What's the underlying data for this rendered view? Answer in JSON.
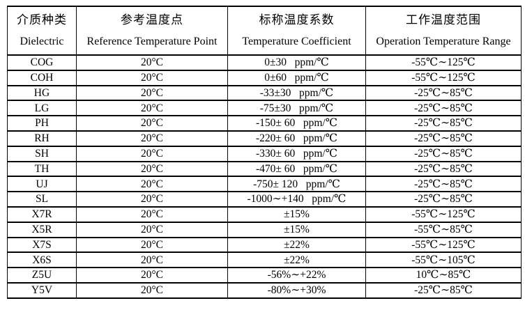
{
  "table": {
    "columns": [
      {
        "zh": "介质种类",
        "en": "Dielectric"
      },
      {
        "zh": "参考温度点",
        "en": "Reference Temperature Point"
      },
      {
        "zh": "标称温度系数",
        "en": "Temperature Coefficient"
      },
      {
        "zh": "工作温度范围",
        "en": "Operation Temperature Range"
      }
    ],
    "rows": [
      {
        "dielectric": "COG",
        "reference": "20°C",
        "coefficient": "0±30   ppm/℃",
        "range": "-55℃∼125℃"
      },
      {
        "dielectric": "COH",
        "reference": "20°C",
        "coefficient": "0±60   ppm/℃",
        "range": "-55℃∼125℃"
      },
      {
        "dielectric": "HG",
        "reference": "20°C",
        "coefficient": "-33±30   ppm/℃",
        "range": "-25℃∼85℃"
      },
      {
        "dielectric": "LG",
        "reference": "20°C",
        "coefficient": "-75±30   ppm/℃",
        "range": "-25℃∼85℃"
      },
      {
        "dielectric": "PH",
        "reference": "20°C",
        "coefficient": "-150± 60   ppm/℃",
        "range": "-25℃∼85℃"
      },
      {
        "dielectric": "RH",
        "reference": "20°C",
        "coefficient": "-220± 60   ppm/℃",
        "range": "-25℃∼85℃"
      },
      {
        "dielectric": "SH",
        "reference": "20°C",
        "coefficient": "-330± 60   ppm/℃",
        "range": "-25℃∼85℃"
      },
      {
        "dielectric": "TH",
        "reference": "20°C",
        "coefficient": "-470± 60   ppm/℃",
        "range": "-25℃∼85℃"
      },
      {
        "dielectric": "UJ",
        "reference": "20°C",
        "coefficient": "-750± 120   ppm/℃",
        "range": "-25℃∼85℃"
      },
      {
        "dielectric": "SL",
        "reference": "20°C",
        "coefficient": "-1000∼+140   ppm/℃",
        "range": "-25℃∼85℃"
      },
      {
        "dielectric": "X7R",
        "reference": "20°C",
        "coefficient": "±15%",
        "range": "-55℃∼125℃"
      },
      {
        "dielectric": "X5R",
        "reference": "20°C",
        "coefficient": "±15%",
        "range": "-55℃∼85℃"
      },
      {
        "dielectric": "X7S",
        "reference": "20°C",
        "coefficient": "±22%",
        "range": "-55℃∼125℃"
      },
      {
        "dielectric": "X6S",
        "reference": "20°C",
        "coefficient": "±22%",
        "range": "-55℃∼105℃"
      },
      {
        "dielectric": "Z5U",
        "reference": "20°C",
        "coefficient": "-56%∼+22%",
        "range": "10℃∼85℃"
      },
      {
        "dielectric": "Y5V",
        "reference": "20°C",
        "coefficient": "-80%∼+30%",
        "range": "-25℃∼85℃"
      }
    ]
  },
  "colors": {
    "background": "#ffffff",
    "border": "#000000",
    "text": "#000000"
  }
}
